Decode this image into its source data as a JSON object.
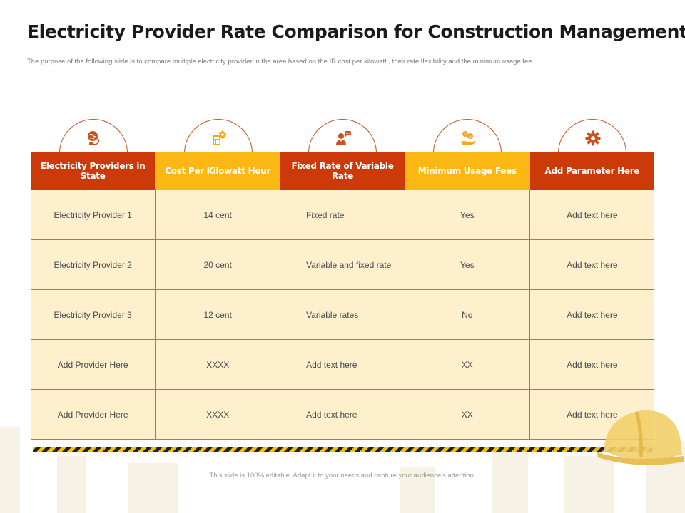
{
  "slide": {
    "title": "Electricity Provider Rate Comparison for Construction Management",
    "subtitle": "The purpose of the following slide is to compare multiple  electricity provider in the area based on the IR  cost per kilowatt , their rate flexibility and the minimum  usage fee.",
    "footer": "This slide is 100% editable. Adapt it to your needs and capture your audience's attention."
  },
  "colors": {
    "header_red": "#cc3a0a",
    "header_yellow": "#fbb814",
    "cell_bg": "#fef0cd",
    "icon_accent": "#c9531f"
  },
  "icons": [
    "globe-plug-icon",
    "calculator-gear-icon",
    "person-chat-icon",
    "hand-coins-icon",
    "gear-icon"
  ],
  "table": {
    "headers": [
      "Electricity Providers in State",
      "Cost Per Kilowatt Hour",
      "Fixed Rate of Variable Rate",
      "Minimum  Usage Fees",
      "Add Parameter Here"
    ],
    "rows": [
      [
        "Electricity Provider 1",
        "14 cent",
        "Fixed rate",
        "Yes",
        "Add text here"
      ],
      [
        "Electricity Provider 2",
        "20 cent",
        "Variable and fixed rate",
        "Yes",
        "Add text here"
      ],
      [
        "Electricity Provider 3",
        "12 cent",
        "Variable rates",
        "No",
        "Add text here"
      ],
      [
        "Add Provider Here",
        "XXXX",
        "Add text here",
        "XX",
        "Add text here"
      ],
      [
        "Add Provider Here",
        "XXXX",
        "Add text here",
        "XX",
        "Add text here"
      ]
    ]
  }
}
